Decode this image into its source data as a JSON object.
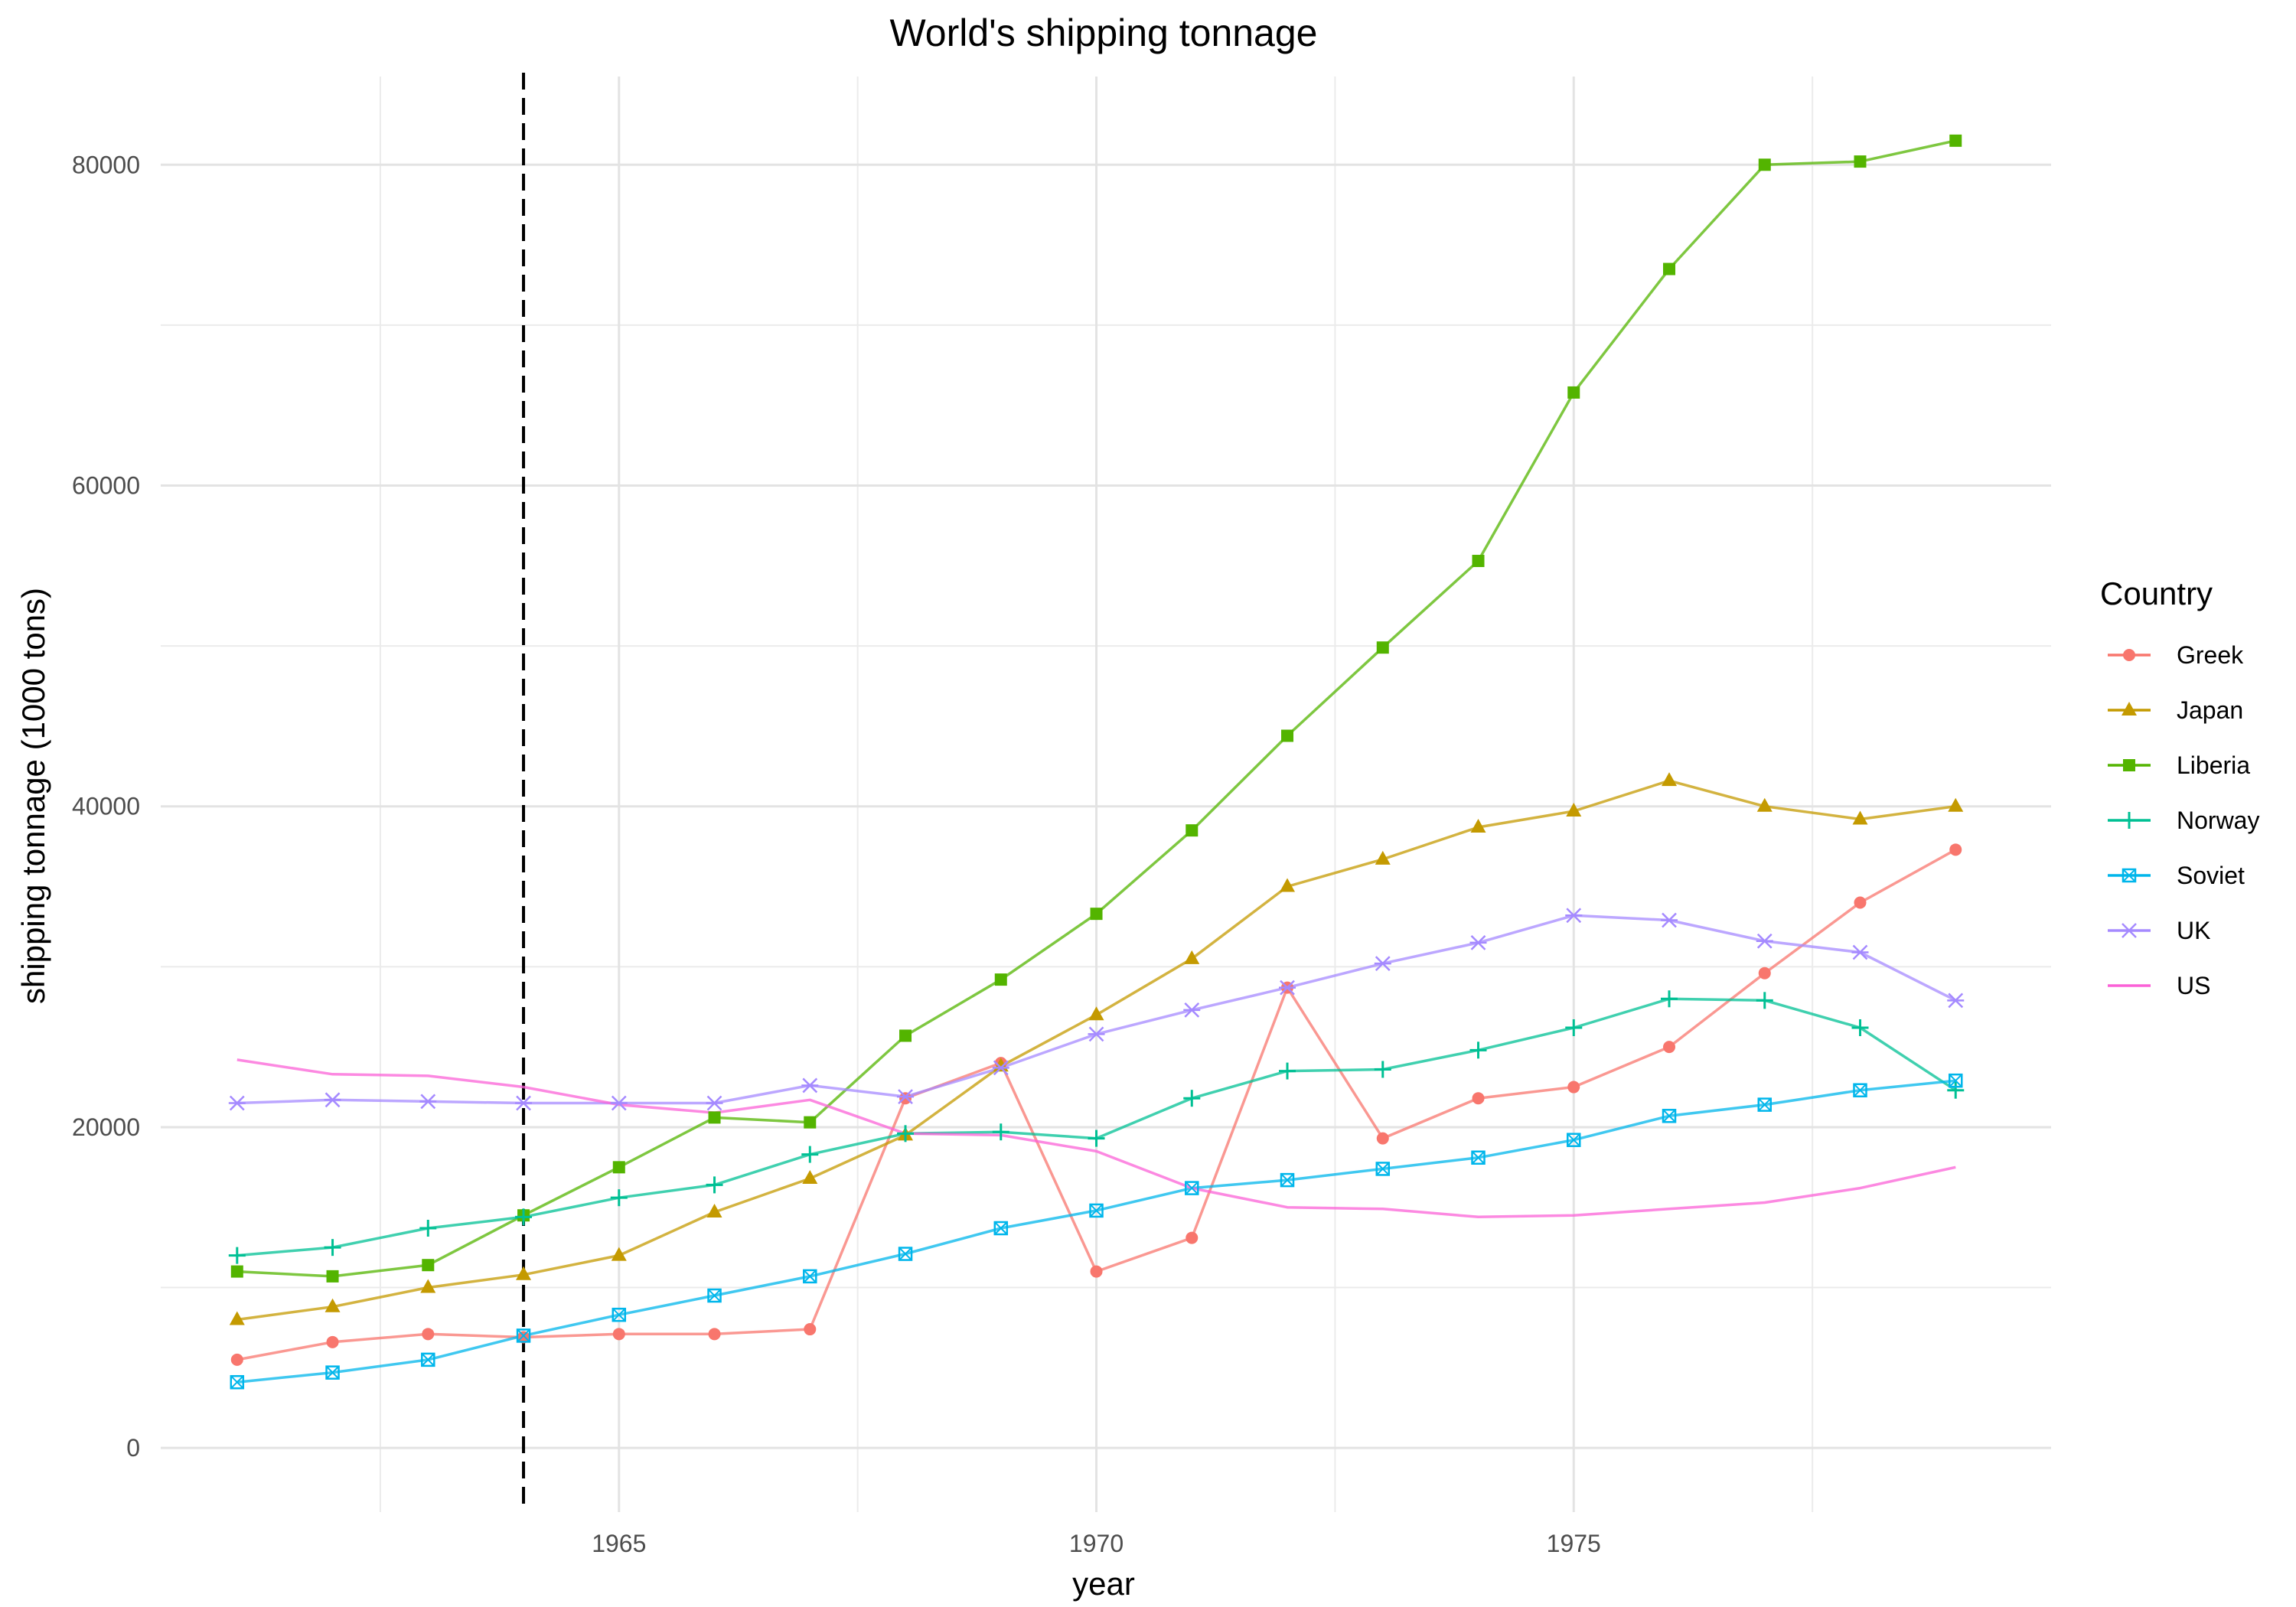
{
  "chart_data": {
    "type": "line",
    "title": "World's shipping tonnage",
    "xlabel": "year",
    "ylabel": "shipping tonnage (1000 tons)",
    "xlim": [
      1960.2,
      1980.0
    ],
    "ylim": [
      -4000,
      85500
    ],
    "x_ticks": [
      1965,
      1970,
      1975
    ],
    "x_minor_ticks": [
      1962.5,
      1967.5,
      1972.5,
      1977.5
    ],
    "y_ticks": [
      0,
      20000,
      40000,
      60000,
      80000
    ],
    "y_minor_ticks": [
      10000,
      30000,
      50000,
      70000
    ],
    "grid": true,
    "reference_line": {
      "axis": "x",
      "value": 1964,
      "style": "dashed"
    },
    "legend": {
      "title": "Country",
      "position": "right"
    },
    "x": [
      1961,
      1962,
      1963,
      1964,
      1965,
      1966,
      1967,
      1968,
      1969,
      1970,
      1971,
      1972,
      1973,
      1974,
      1975,
      1976,
      1977,
      1978,
      1979
    ],
    "series": [
      {
        "name": "Greek",
        "color": "#f8766d",
        "marker": "circle",
        "values": [
          5500,
          6600,
          7100,
          6900,
          7100,
          7100,
          7400,
          21800,
          24000,
          11000,
          13100,
          28700,
          19300,
          21800,
          22500,
          25000,
          29600,
          34000,
          37300
        ]
      },
      {
        "name": "Japan",
        "color": "#c49a00",
        "marker": "triangle",
        "values": [
          8000,
          8800,
          10000,
          10800,
          12000,
          14700,
          16800,
          19500,
          23800,
          27000,
          30500,
          35000,
          36700,
          38700,
          39700,
          41600,
          40000,
          39200,
          40000
        ]
      },
      {
        "name": "Liberia",
        "color": "#53b400",
        "marker": "square",
        "values": [
          11000,
          10700,
          11400,
          14500,
          17500,
          20600,
          20300,
          25700,
          29200,
          33300,
          38500,
          44400,
          49900,
          55300,
          65800,
          73500,
          80000,
          80200,
          81500
        ]
      },
      {
        "name": "Norway",
        "color": "#00c094",
        "marker": "plus",
        "values": [
          12000,
          12500,
          13700,
          14400,
          15600,
          16400,
          18300,
          19600,
          19700,
          19300,
          21800,
          23500,
          23600,
          24800,
          26200,
          28000,
          27900,
          26200,
          22300
        ]
      },
      {
        "name": "Soviet",
        "color": "#00b6eb",
        "marker": "boxcross",
        "values": [
          4100,
          4700,
          5500,
          7000,
          8300,
          9500,
          10700,
          12100,
          13700,
          14800,
          16200,
          16700,
          17400,
          18100,
          19200,
          20700,
          21400,
          22300,
          22900
        ]
      },
      {
        "name": "UK",
        "color": "#a58aff",
        "marker": "asterisk",
        "values": [
          21500,
          21700,
          21600,
          21500,
          21500,
          21500,
          22600,
          21900,
          23700,
          25800,
          27300,
          28700,
          30200,
          31500,
          33200,
          32900,
          31600,
          30900,
          27900
        ]
      },
      {
        "name": "US",
        "color": "#fb61d7",
        "marker": "none",
        "values": [
          24200,
          23300,
          23200,
          22500,
          21400,
          20900,
          21700,
          19600,
          19500,
          18500,
          16200,
          15000,
          14900,
          14400,
          14500,
          14900,
          15300,
          16200,
          17500
        ]
      }
    ]
  }
}
